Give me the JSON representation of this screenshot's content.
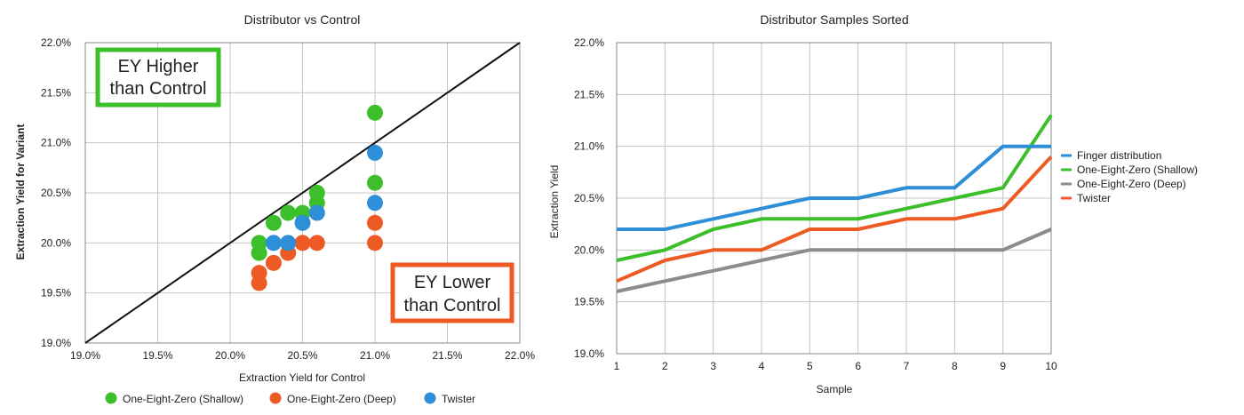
{
  "chart_data": [
    {
      "type": "scatter",
      "title": "Distributor vs Control",
      "xlabel": "Extraction Yield for Control",
      "ylabel": "Extraction Yield for Variant",
      "xlim": [
        19.0,
        22.0
      ],
      "ylim": [
        19.0,
        22.0
      ],
      "x_ticks": [
        "19.0%",
        "19.5%",
        "20.0%",
        "20.5%",
        "21.0%",
        "21.5%",
        "22.0%"
      ],
      "y_ticks": [
        "19.0%",
        "19.5%",
        "20.0%",
        "20.5%",
        "21.0%",
        "21.5%",
        "22.0%"
      ],
      "grid": true,
      "legend_position": "bottom",
      "reference_line": {
        "from": [
          19.0,
          19.0
        ],
        "to": [
          22.0,
          22.0
        ],
        "color": "#111111"
      },
      "annotations": [
        {
          "lines": [
            "EY Higher",
            "than Control"
          ],
          "color": "#3cbf2a"
        },
        {
          "lines": [
            "EY Lower",
            "than Control"
          ],
          "color": "#ee5a24"
        }
      ],
      "series": [
        {
          "name": "One-Eight-Zero (Shallow)",
          "color": "#3cbf2a",
          "points": [
            [
              20.2,
              19.9
            ],
            [
              20.2,
              20.0
            ],
            [
              20.3,
              20.2
            ],
            [
              20.4,
              20.3
            ],
            [
              20.5,
              20.3
            ],
            [
              20.6,
              20.4
            ],
            [
              20.6,
              20.5
            ],
            [
              21.0,
              20.6
            ],
            [
              21.0,
              21.3
            ]
          ]
        },
        {
          "name": "One-Eight-Zero (Deep)",
          "color": "#ee5a24",
          "points": [
            [
              20.2,
              19.6
            ],
            [
              20.2,
              19.7
            ],
            [
              20.3,
              19.8
            ],
            [
              20.4,
              19.9
            ],
            [
              20.5,
              20.0
            ],
            [
              20.6,
              20.0
            ],
            [
              21.0,
              20.0
            ],
            [
              21.0,
              20.2
            ]
          ]
        },
        {
          "name": "Twister",
          "color": "#2e8fd8",
          "points": [
            [
              20.3,
              20.0
            ],
            [
              20.4,
              20.0
            ],
            [
              20.5,
              20.2
            ],
            [
              20.6,
              20.3
            ],
            [
              21.0,
              20.4
            ],
            [
              21.0,
              20.9
            ]
          ]
        }
      ]
    },
    {
      "type": "line",
      "title": "Distributor Samples Sorted",
      "xlabel": "Sample",
      "ylabel": "Extraction Yield",
      "x": [
        1,
        2,
        3,
        4,
        5,
        6,
        7,
        8,
        9,
        10
      ],
      "x_ticks": [
        "1",
        "2",
        "3",
        "4",
        "5",
        "6",
        "7",
        "8",
        "9",
        "10"
      ],
      "ylim": [
        19.0,
        22.0
      ],
      "y_ticks": [
        "19.0%",
        "19.5%",
        "20.0%",
        "20.5%",
        "21.0%",
        "21.5%",
        "22.0%"
      ],
      "grid": true,
      "legend_position": "right",
      "series": [
        {
          "name": "Finger distribution",
          "color": "#2e8fd8",
          "values": [
            20.2,
            20.2,
            20.3,
            20.4,
            20.5,
            20.5,
            20.6,
            20.6,
            21.0,
            21.0
          ]
        },
        {
          "name": "One-Eight-Zero (Shallow)",
          "color": "#3cbf2a",
          "values": [
            19.9,
            20.0,
            20.2,
            20.3,
            20.3,
            20.3,
            20.4,
            20.5,
            20.6,
            21.3
          ]
        },
        {
          "name": "One-Eight-Zero (Deep)",
          "color": "#8c8c8c",
          "values": [
            19.6,
            19.7,
            19.8,
            19.9,
            20.0,
            20.0,
            20.0,
            20.0,
            20.0,
            20.2
          ]
        },
        {
          "name": "Twister",
          "color": "#ee5a24",
          "values": [
            19.7,
            19.9,
            20.0,
            20.0,
            20.2,
            20.2,
            20.3,
            20.3,
            20.4,
            20.9
          ]
        }
      ]
    }
  ]
}
